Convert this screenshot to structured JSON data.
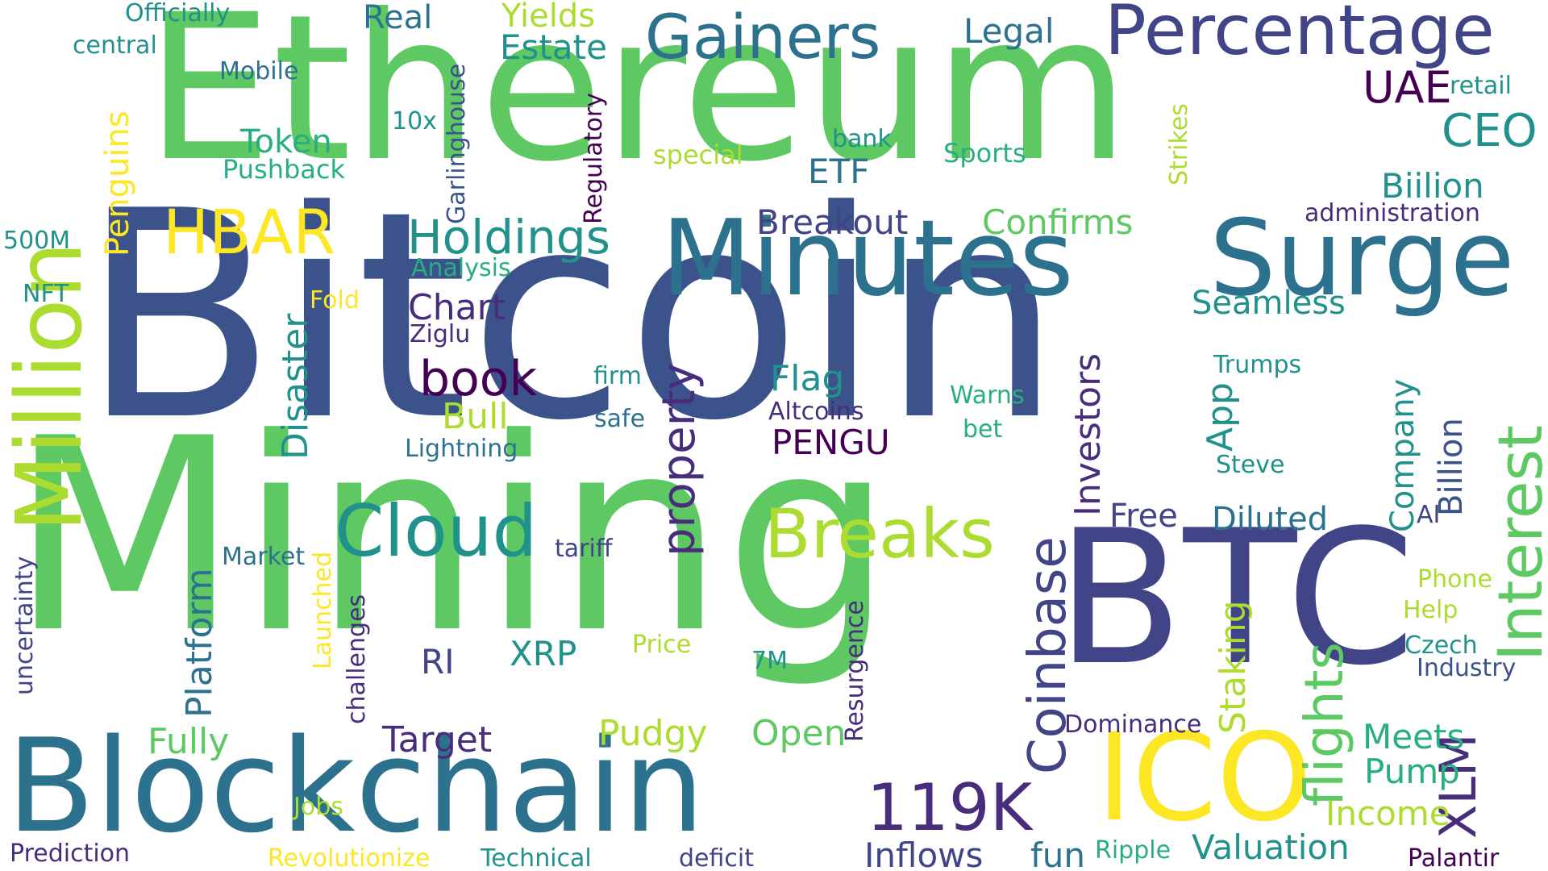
{
  "words": [
    "Bitcoin",
    "Mining",
    "Ethereum",
    "BTC",
    "Blockchain",
    "Minutes",
    "Surge",
    "Million",
    "ICO",
    "Percentage",
    "Gainers",
    "Cloud",
    "Breaks",
    "Interest",
    "Coinbase",
    "HBAR",
    "Holdings",
    "book",
    "119K",
    "flights",
    "XLM",
    "property",
    "Investors",
    "Disaster",
    "Platform",
    "Penguins",
    "Breakout",
    "Confirms",
    "Biilion",
    "CEO",
    "UAE",
    "Legal",
    "Real",
    "Estate",
    "Yields",
    "Officially",
    "central",
    "Mobile",
    "Token",
    "Pushback",
    "10x",
    "Garlinghouse",
    "Regulatory",
    "special",
    "bank",
    "ETF",
    "Sports",
    "Strikes",
    "retail",
    "administration",
    "500M",
    "NFT",
    "Analysis",
    "Chart",
    "Fold",
    "Ziglu",
    "Seamless",
    "Trumps",
    "Flag",
    "firm",
    "safe",
    "Bull",
    "Lightning",
    "Altcoins",
    "PENGU",
    "Warns",
    "bet",
    "App",
    "Company",
    "Billion",
    "Steve",
    "Free",
    "Diluted",
    "AI",
    "Market",
    "tariff",
    "uncertainty",
    "Launched",
    "challenges",
    "Resurgence",
    "RI",
    "XRP",
    "Price",
    "7M",
    "Staking",
    "Phone",
    "Help",
    "Czech",
    "Industry",
    "Fully",
    "Target",
    "Pudgy",
    "Open",
    "Dominance",
    "Meets",
    "Pump",
    "Income",
    "Jobs",
    "Prediction",
    "Revolutionize",
    "Technical",
    "deficit",
    "Inflows",
    "fun",
    "Ripple",
    "Valuation",
    "Palantir"
  ]
}
